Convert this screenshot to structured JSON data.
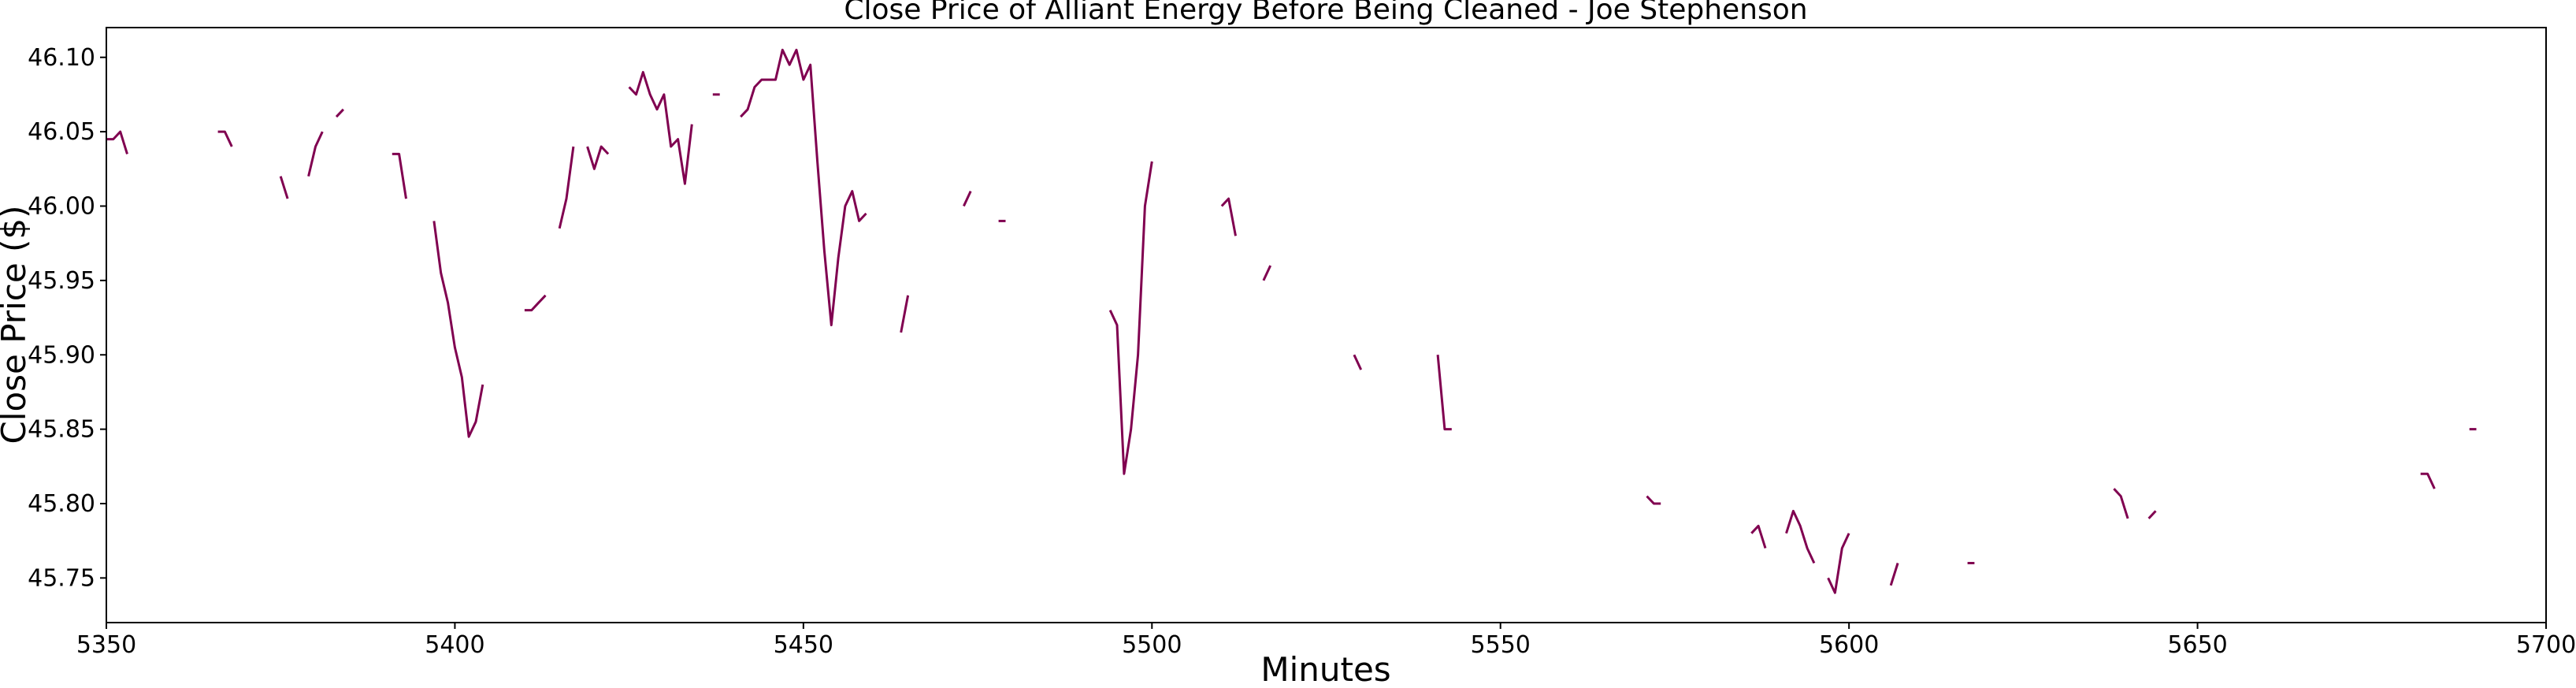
{
  "chart_data": {
    "type": "line",
    "title": "Close Price of Alliant Energy Before Being Cleaned - Joe Stephenson",
    "xlabel": "Minutes",
    "ylabel": "Close Price ($)",
    "xlim": [
      5350,
      5700
    ],
    "ylim": [
      45.72,
      46.12
    ],
    "xticks": [
      5350,
      5400,
      5450,
      5500,
      5550,
      5600,
      5650,
      5700
    ],
    "yticks": [
      45.75,
      45.8,
      45.85,
      45.9,
      45.95,
      46.0,
      46.05,
      46.1
    ],
    "xtick_labels": [
      "5350",
      "5400",
      "5450",
      "5500",
      "5550",
      "5600",
      "5650",
      "5700"
    ],
    "ytick_labels": [
      "45.75",
      "45.80",
      "45.85",
      "45.90",
      "45.95",
      "46.00",
      "46.05",
      "46.10"
    ],
    "grid": false,
    "legend": "none",
    "line_color": "#800050",
    "segments": [
      [
        [
          5350,
          46.045
        ],
        [
          5351,
          46.045
        ],
        [
          5352,
          46.05
        ],
        [
          5353,
          46.035
        ]
      ],
      [
        [
          5366,
          46.05
        ],
        [
          5367,
          46.05
        ],
        [
          5368,
          46.04
        ]
      ],
      [
        [
          5375,
          46.02
        ],
        [
          5376,
          46.005
        ]
      ],
      [
        [
          5379,
          46.02
        ],
        [
          5380,
          46.04
        ],
        [
          5381,
          46.05
        ]
      ],
      [
        [
          5383,
          46.06
        ],
        [
          5384,
          46.065
        ]
      ],
      [
        [
          5391,
          46.035
        ],
        [
          5392,
          46.035
        ],
        [
          5393,
          46.005
        ]
      ],
      [
        [
          5397,
          45.99
        ],
        [
          5398,
          45.955
        ],
        [
          5399,
          45.935
        ],
        [
          5400,
          45.905
        ],
        [
          5401,
          45.885
        ],
        [
          5402,
          45.845
        ],
        [
          5403,
          45.855
        ],
        [
          5404,
          45.88
        ]
      ],
      [
        [
          5410,
          45.93
        ],
        [
          5411,
          45.93
        ],
        [
          5412,
          45.935
        ],
        [
          5413,
          45.94
        ]
      ],
      [
        [
          5415,
          45.985
        ],
        [
          5416,
          46.005
        ],
        [
          5417,
          46.04
        ]
      ],
      [
        [
          5419,
          46.04
        ],
        [
          5420,
          46.025
        ],
        [
          5421,
          46.04
        ],
        [
          5422,
          46.035
        ]
      ],
      [
        [
          5425,
          46.08
        ],
        [
          5426,
          46.075
        ],
        [
          5427,
          46.09
        ],
        [
          5428,
          46.075
        ],
        [
          5429,
          46.065
        ],
        [
          5430,
          46.075
        ],
        [
          5431,
          46.04
        ],
        [
          5432,
          46.045
        ],
        [
          5433,
          46.015
        ],
        [
          5434,
          46.055
        ]
      ],
      [
        [
          5437,
          46.075
        ],
        [
          5438,
          46.075
        ]
      ],
      [
        [
          5441,
          46.06
        ],
        [
          5442,
          46.065
        ],
        [
          5443,
          46.08
        ],
        [
          5444,
          46.085
        ],
        [
          5445,
          46.085
        ],
        [
          5446,
          46.085
        ],
        [
          5447,
          46.105
        ],
        [
          5448,
          46.095
        ],
        [
          5449,
          46.105
        ],
        [
          5450,
          46.085
        ],
        [
          5451,
          46.095
        ],
        [
          5452,
          46.03
        ],
        [
          5453,
          45.97
        ],
        [
          5454,
          45.92
        ],
        [
          5455,
          45.965
        ],
        [
          5456,
          46.0
        ],
        [
          5457,
          46.01
        ],
        [
          5458,
          45.99
        ],
        [
          5459,
          45.995
        ]
      ],
      [
        [
          5464,
          45.915
        ],
        [
          5465,
          45.94
        ]
      ],
      [
        [
          5473,
          46.0
        ],
        [
          5474,
          46.01
        ]
      ],
      [
        [
          5478,
          45.99
        ],
        [
          5479,
          45.99
        ]
      ],
      [
        [
          5494,
          45.93
        ],
        [
          5495,
          45.92
        ],
        [
          5496,
          45.82
        ],
        [
          5497,
          45.85
        ],
        [
          5498,
          45.9
        ],
        [
          5499,
          46.0
        ],
        [
          5500,
          46.03
        ]
      ],
      [
        [
          5510,
          46.0
        ],
        [
          5511,
          46.005
        ],
        [
          5512,
          45.98
        ]
      ],
      [
        [
          5516,
          45.95
        ],
        [
          5517,
          45.96
        ]
      ],
      [
        [
          5529,
          45.9
        ],
        [
          5530,
          45.89
        ]
      ],
      [
        [
          5541,
          45.9
        ],
        [
          5542,
          45.85
        ],
        [
          5543,
          45.85
        ]
      ],
      [
        [
          5571,
          45.805
        ],
        [
          5572,
          45.8
        ],
        [
          5573,
          45.8
        ]
      ],
      [
        [
          5586,
          45.78
        ],
        [
          5587,
          45.785
        ],
        [
          5588,
          45.77
        ]
      ],
      [
        [
          5591,
          45.78
        ],
        [
          5592,
          45.795
        ],
        [
          5593,
          45.785
        ],
        [
          5594,
          45.77
        ],
        [
          5595,
          45.76
        ]
      ],
      [
        [
          5597,
          45.75
        ],
        [
          5598,
          45.74
        ],
        [
          5599,
          45.77
        ],
        [
          5600,
          45.78
        ]
      ],
      [
        [
          5606,
          45.745
        ],
        [
          5607,
          45.76
        ]
      ],
      [
        [
          5617,
          45.76
        ],
        [
          5618,
          45.76
        ]
      ],
      [
        [
          5638,
          45.81
        ],
        [
          5639,
          45.805
        ],
        [
          5640,
          45.79
        ]
      ],
      [
        [
          5643,
          45.79
        ],
        [
          5644,
          45.795
        ]
      ],
      [
        [
          5682,
          45.82
        ],
        [
          5683,
          45.82
        ],
        [
          5684,
          45.81
        ]
      ],
      [
        [
          5689,
          45.85
        ],
        [
          5690,
          45.85
        ]
      ]
    ]
  }
}
